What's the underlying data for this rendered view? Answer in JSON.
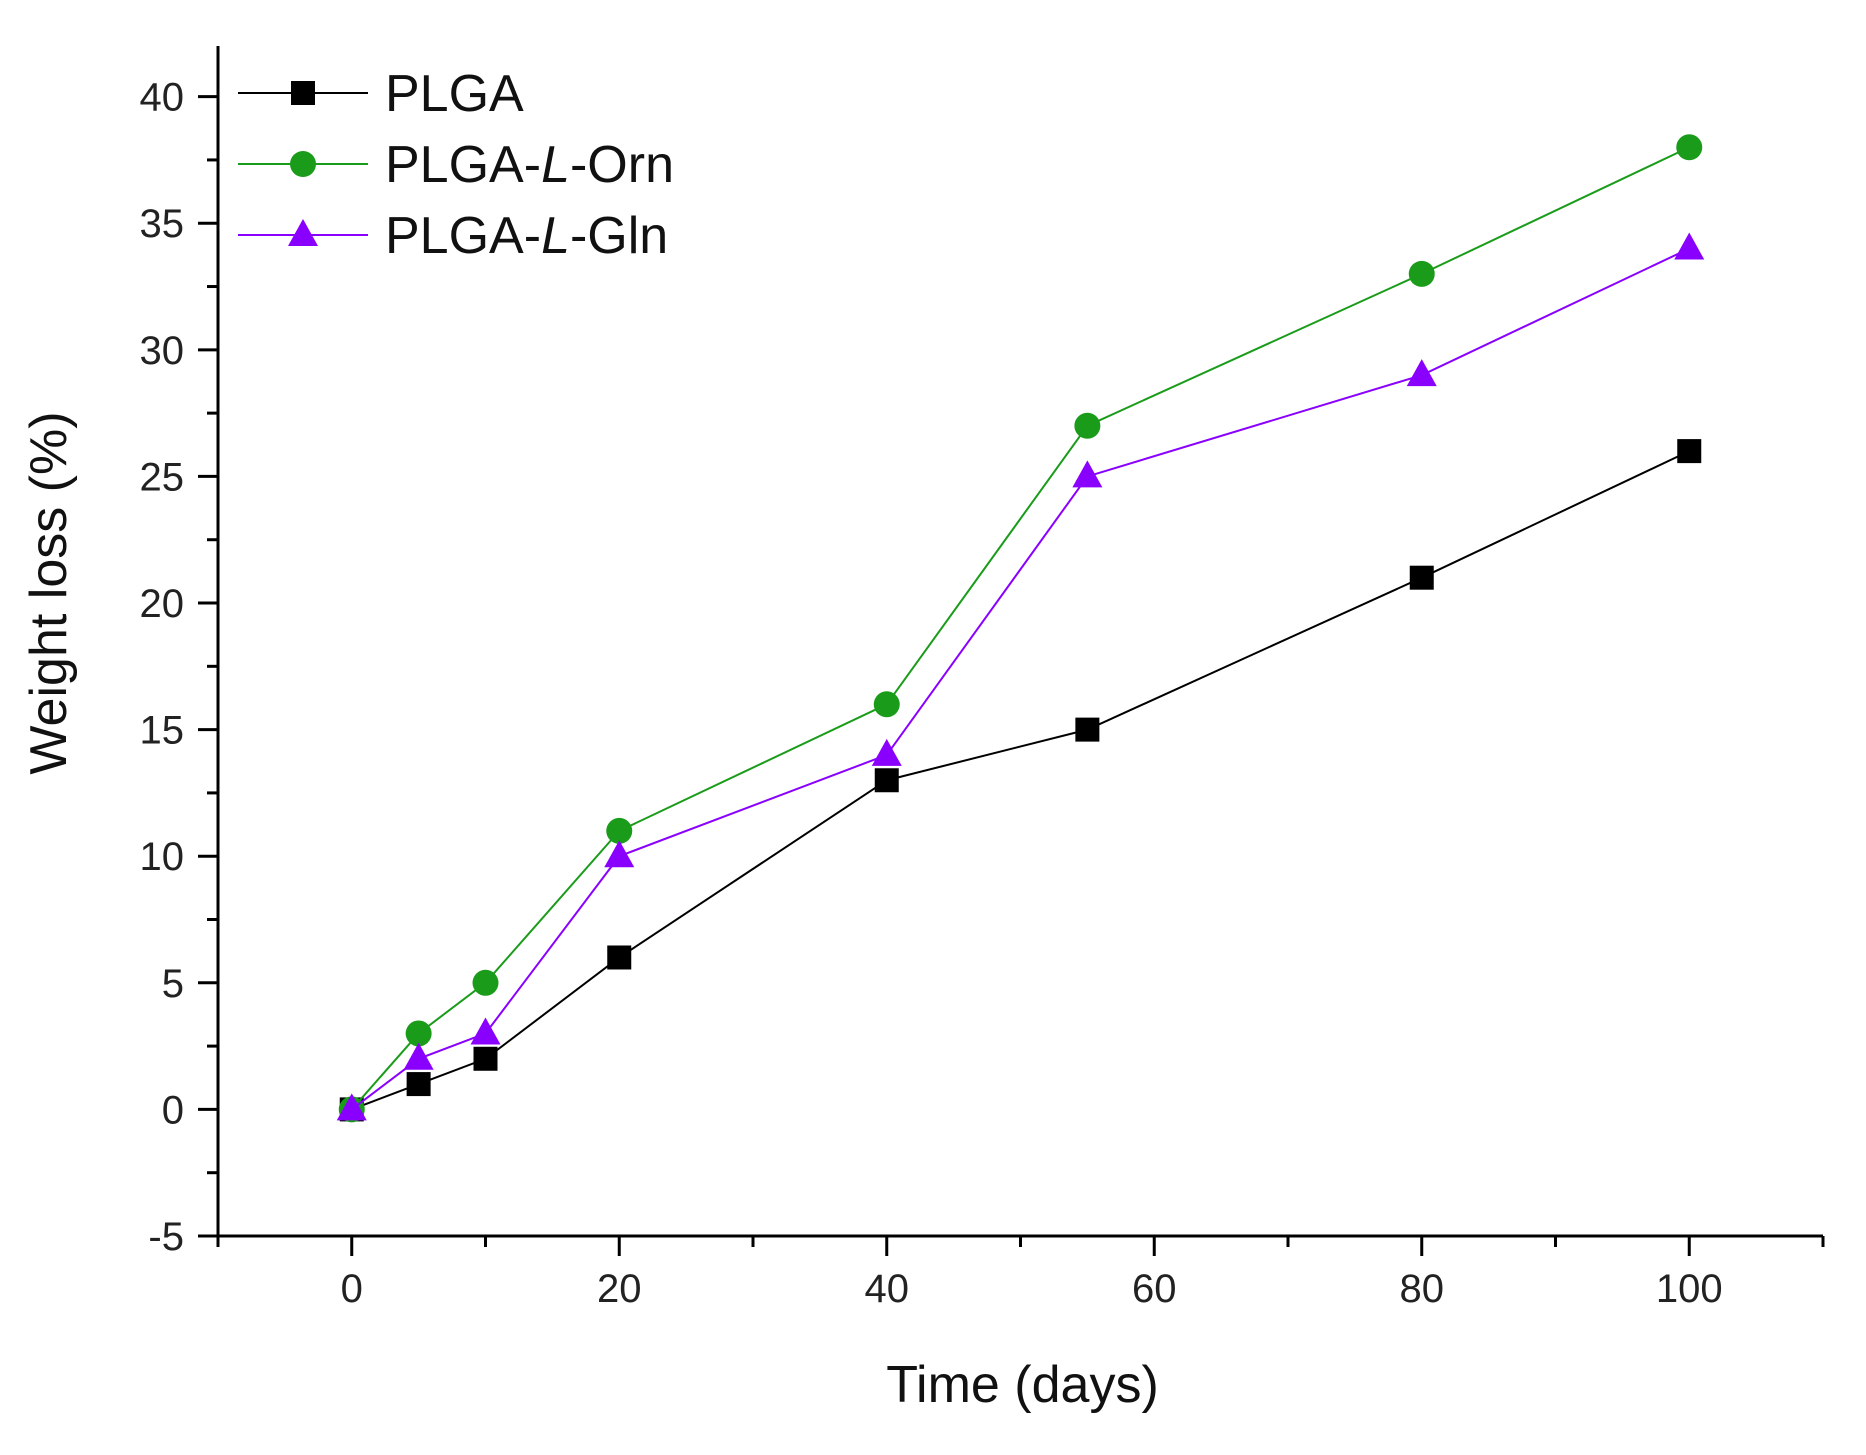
{
  "chart_data": {
    "type": "line",
    "title": "",
    "xlabel": "Time (days)",
    "ylabel": "Weight loss (%)",
    "xlim": [
      -10,
      110
    ],
    "ylim": [
      -5,
      42
    ],
    "x_ticks": [
      0,
      20,
      40,
      60,
      80,
      100
    ],
    "y_ticks": [
      -5,
      0,
      5,
      10,
      15,
      20,
      25,
      30,
      35,
      40
    ],
    "grid": false,
    "legend_position": "top-left",
    "x": [
      0,
      5,
      10,
      20,
      40,
      55,
      80,
      100
    ],
    "series": [
      {
        "name": "PLGA",
        "name_parts": [
          "PLGA"
        ],
        "color": "#000000",
        "marker": "square",
        "values": [
          0,
          1,
          2,
          6,
          13,
          15,
          21,
          26
        ]
      },
      {
        "name": "PLGA-L-Orn",
        "name_parts": [
          "PLGA-",
          "L",
          "-Orn"
        ],
        "color": "#1a9c1a",
        "marker": "circle",
        "values": [
          0,
          3,
          5,
          11,
          16,
          27,
          33,
          38
        ]
      },
      {
        "name": "PLGA-L-Gln",
        "name_parts": [
          "PLGA-",
          "L",
          "-Gln"
        ],
        "color": "#8a00ff",
        "marker": "triangle",
        "values": [
          0,
          2,
          3,
          10,
          14,
          25,
          29,
          34
        ]
      }
    ]
  }
}
